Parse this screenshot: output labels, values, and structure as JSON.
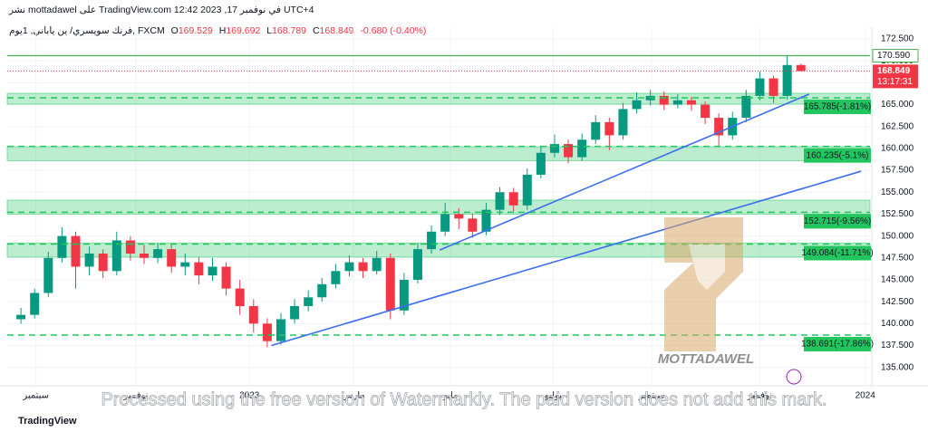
{
  "header": {
    "published": "نشر mottadawel على TradingView.com في نوفمبر 17, 2023 12:42 UTC+4",
    "symbol": "فرنك سويسري/ ين ياباني, 1يوم, FXCM",
    "o_label": "O",
    "open": "169.529",
    "h_label": "H",
    "high": "169.692",
    "l_label": "L",
    "low": "168.789",
    "c_label": "C",
    "close": "168.849",
    "change": "-0.680 (-0.40%)"
  },
  "chart_data": {
    "type": "candlestick",
    "up_color": "#089981",
    "down_color": "#f23645",
    "x": [
      0,
      1,
      2,
      3,
      4,
      5,
      6,
      7,
      8,
      9,
      10,
      11,
      12,
      13,
      14,
      15,
      16,
      17,
      18,
      19,
      20,
      21,
      22,
      23,
      24,
      25,
      26,
      27,
      28,
      29,
      30,
      31,
      32,
      33,
      34,
      35,
      36,
      37,
      38,
      39,
      40,
      41,
      42,
      43,
      44,
      45,
      46,
      47,
      48,
      49,
      50,
      51,
      52,
      53,
      54,
      55,
      56,
      57
    ],
    "open": [
      140.5,
      141.0,
      143.5,
      147.5,
      150.0,
      146.5,
      148.0,
      146.0,
      149.5,
      148.0,
      147.5,
      148.5,
      146.5,
      147.0,
      145.5,
      146.5,
      144.0,
      142.0,
      140.0,
      138.0,
      140.5,
      142.0,
      143.0,
      144.5,
      146.0,
      147.0,
      146.0,
      147.5,
      141.5,
      145.0,
      148.5,
      150.5,
      152.5,
      152.0,
      150.5,
      153.0,
      155.0,
      153.5,
      157.0,
      159.5,
      160.5,
      159.0,
      161.0,
      163.0,
      161.5,
      164.5,
      165.5,
      166.0,
      165.0,
      165.5,
      165.0,
      163.5,
      161.5,
      163.5,
      166.0,
      168.0,
      166.0,
      169.529
    ],
    "high": [
      141.8,
      144.0,
      148.2,
      151.0,
      150.5,
      148.8,
      148.5,
      150.5,
      150.0,
      149.0,
      149.2,
      149.0,
      148.0,
      147.6,
      147.5,
      147.0,
      145.0,
      142.8,
      140.6,
      141.2,
      142.8,
      143.8,
      145.2,
      146.8,
      147.8,
      147.5,
      148.3,
      148.0,
      145.8,
      149.2,
      151.2,
      153.8,
      153.2,
      152.6,
      153.8,
      155.6,
      155.5,
      157.7,
      160.2,
      161.6,
      161.0,
      161.7,
      163.8,
      163.5,
      165.2,
      166.4,
      166.7,
      166.5,
      166.2,
      165.9,
      165.4,
      164.0,
      164.2,
      166.7,
      168.8,
      168.3,
      170.6,
      169.692
    ],
    "low": [
      140.0,
      140.6,
      143.0,
      147.0,
      144.0,
      145.5,
      145.2,
      145.5,
      147.2,
      146.8,
      146.9,
      145.8,
      145.5,
      144.5,
      144.9,
      143.2,
      141.0,
      139.0,
      137.3,
      137.6,
      140.0,
      141.4,
      142.5,
      144.0,
      145.4,
      145.2,
      145.6,
      140.5,
      141.0,
      144.6,
      148.0,
      150.0,
      150.8,
      149.8,
      150.1,
      152.4,
      152.8,
      153.0,
      156.6,
      159.0,
      158.3,
      158.6,
      160.5,
      159.8,
      161.0,
      164.0,
      164.9,
      164.4,
      164.6,
      164.3,
      162.8,
      160.2,
      161.0,
      163.0,
      165.5,
      165.2,
      165.6,
      168.789
    ],
    "close": [
      141.0,
      143.5,
      147.5,
      150.0,
      146.5,
      148.0,
      146.0,
      149.5,
      148.0,
      147.5,
      148.5,
      146.5,
      147.0,
      145.5,
      146.5,
      144.0,
      142.0,
      140.0,
      138.0,
      140.5,
      142.0,
      143.0,
      144.5,
      146.0,
      147.0,
      146.0,
      147.5,
      141.5,
      145.0,
      148.5,
      150.5,
      152.5,
      152.0,
      150.5,
      153.0,
      155.0,
      153.5,
      157.0,
      159.5,
      160.5,
      159.0,
      161.0,
      163.0,
      161.5,
      164.5,
      165.5,
      166.0,
      165.0,
      165.5,
      165.0,
      163.5,
      161.5,
      163.5,
      166.0,
      168.0,
      166.0,
      169.529,
      168.849
    ],
    "xlim": [
      -1,
      62.05
    ],
    "ylim": [
      133.0,
      173.85
    ],
    "xticks": [
      {
        "value": 1.1,
        "label": "سبتمبر"
      },
      {
        "value": 8.4,
        "label": "نوفمبر"
      },
      {
        "value": 16.7,
        "label": "2023"
      },
      {
        "value": 24.3,
        "label": "مارس"
      },
      {
        "value": 31.4,
        "label": "مايو"
      },
      {
        "value": 38.9,
        "label": "يوليو"
      },
      {
        "value": 46.1,
        "label": "سبتمبر"
      },
      {
        "value": 54.0,
        "label": "نوفمبر"
      },
      {
        "value": 61.7,
        "label": "2024"
      }
    ],
    "yticks": [
      {
        "value": 135,
        "label": "135.000"
      },
      {
        "value": 137.5,
        "label": "137.500"
      },
      {
        "value": 140,
        "label": "140.000"
      },
      {
        "value": 142.5,
        "label": "142.500"
      },
      {
        "value": 145,
        "label": "145.000"
      },
      {
        "value": 147.5,
        "label": "147.500"
      },
      {
        "value": 150,
        "label": "150.000"
      },
      {
        "value": 152.5,
        "label": "152.500"
      },
      {
        "value": 155,
        "label": "155.000"
      },
      {
        "value": 157.5,
        "label": "157.500"
      },
      {
        "value": 160,
        "label": "160.000"
      },
      {
        "value": 162.5,
        "label": "162.500"
      },
      {
        "value": 165,
        "label": "165.000"
      },
      {
        "value": 167.5,
        "label": "167.500"
      },
      {
        "value": 170,
        "label": "170.000"
      },
      {
        "value": 172.5,
        "label": "172.500"
      }
    ],
    "grid": true,
    "zones": [
      [
        165.06,
        166.3
      ],
      [
        158.6,
        160.2
      ],
      [
        152.5,
        154.1
      ],
      [
        147.6,
        149.2
      ]
    ],
    "levels": [
      {
        "value": 165.785,
        "label": "165.785(-1.81%)"
      },
      {
        "value": 160.235,
        "label": "160.235(-5.1%)"
      },
      {
        "value": 152.715,
        "label": "152.715(-9.56%)"
      },
      {
        "value": 149.084,
        "label": "149.084(-11.71%)"
      },
      {
        "value": 138.691,
        "label": "138.691(-17.86%)"
      }
    ],
    "level_color": "#22c55e",
    "resistance": {
      "value": 170.59,
      "label": "170.590"
    },
    "last_price": {
      "value": 168.849,
      "label": "168.849",
      "countdown": "13:17:31"
    },
    "trendline_color": "#3b6ef0",
    "trendlines": [
      {
        "x": [
          30.6,
          57.6
        ],
        "y": [
          148.4,
          166.2
        ]
      },
      {
        "x": [
          18.3,
          61.4
        ],
        "y": [
          137.5,
          157.4
        ]
      }
    ]
  },
  "watermark": {
    "brand": "MOTTADAWEL",
    "notice": "Processed using the free version of Watermarkly. The paid version does not add this mark."
  },
  "footer": {
    "logo": "TradingView"
  }
}
